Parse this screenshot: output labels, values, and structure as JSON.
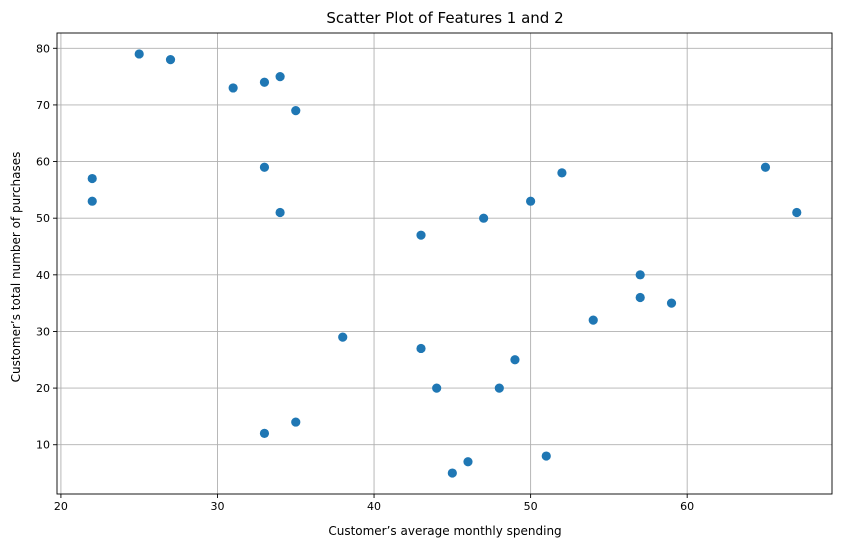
{
  "chart_data": {
    "type": "scatter",
    "title": "Scatter Plot of Features 1 and 2",
    "xlabel": "Customer’s average monthly spending",
    "ylabel": "Customer’s total number of purchases",
    "xlim": [
      19.75,
      69.25
    ],
    "ylim": [
      1.3,
      82.7
    ],
    "xticks": [
      20,
      30,
      40,
      50,
      60
    ],
    "yticks": [
      10,
      20,
      30,
      40,
      50,
      60,
      70,
      80
    ],
    "grid": true,
    "marker_color": "#1f77b4",
    "points": [
      {
        "x": 25,
        "y": 79
      },
      {
        "x": 27,
        "y": 78
      },
      {
        "x": 31,
        "y": 73
      },
      {
        "x": 33,
        "y": 74
      },
      {
        "x": 34,
        "y": 75
      },
      {
        "x": 35,
        "y": 69
      },
      {
        "x": 22,
        "y": 57
      },
      {
        "x": 22,
        "y": 53
      },
      {
        "x": 33,
        "y": 59
      },
      {
        "x": 34,
        "y": 51
      },
      {
        "x": 43,
        "y": 47
      },
      {
        "x": 47,
        "y": 50
      },
      {
        "x": 50,
        "y": 53
      },
      {
        "x": 52,
        "y": 58
      },
      {
        "x": 65,
        "y": 59
      },
      {
        "x": 67,
        "y": 51
      },
      {
        "x": 57,
        "y": 40
      },
      {
        "x": 57,
        "y": 36
      },
      {
        "x": 59,
        "y": 35
      },
      {
        "x": 54,
        "y": 32
      },
      {
        "x": 38,
        "y": 29
      },
      {
        "x": 43,
        "y": 27
      },
      {
        "x": 49,
        "y": 25
      },
      {
        "x": 44,
        "y": 20
      },
      {
        "x": 48,
        "y": 20
      },
      {
        "x": 33,
        "y": 12
      },
      {
        "x": 35,
        "y": 14
      },
      {
        "x": 45,
        "y": 5
      },
      {
        "x": 46,
        "y": 7
      },
      {
        "x": 51,
        "y": 8
      }
    ]
  }
}
